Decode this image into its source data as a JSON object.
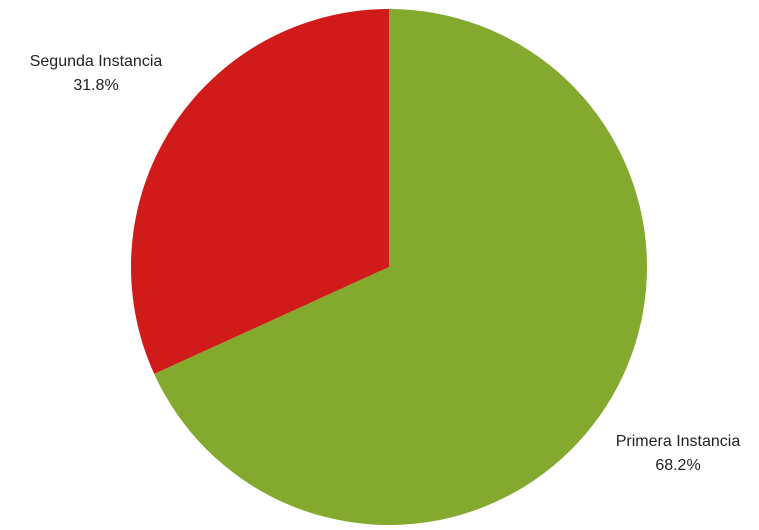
{
  "chart_data": {
    "type": "pie",
    "slices": [
      {
        "name": "Primera Instancia",
        "value": 68.2,
        "label": "68.2%",
        "color": "#83aa2f"
      },
      {
        "name": "Segunda Instancia",
        "value": 31.8,
        "label": "31.8%",
        "color": "#d11a1a"
      }
    ],
    "start_angle_deg": 0,
    "direction": "clockwise"
  }
}
